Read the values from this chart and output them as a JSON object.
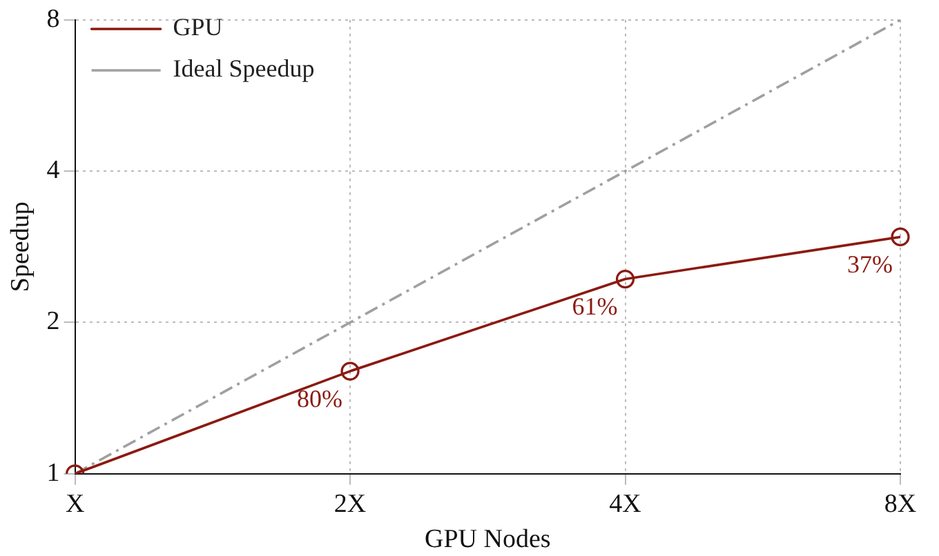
{
  "chart_data": {
    "type": "line",
    "xlabel": "GPU Nodes",
    "ylabel": "Speedup",
    "categories": [
      "X",
      "2X",
      "4X",
      "8X"
    ],
    "series": [
      {
        "name": "GPU",
        "color": "#8b1a10",
        "values": [
          1,
          1.6,
          2.44,
          2.96
        ],
        "marker": "circle",
        "line_style": "solid"
      },
      {
        "name": "Ideal Speedup",
        "color": "#a0a0a0",
        "values": [
          1,
          2,
          4,
          8
        ],
        "marker": "none",
        "line_style": "dashed"
      }
    ],
    "log": "y",
    "ylim": [
      1,
      8
    ],
    "yticks": [
      1,
      2,
      4,
      8
    ],
    "grid": true,
    "legend": "top left",
    "annotations": [
      {
        "text": "80%",
        "x": "2X",
        "y": 1.6
      },
      {
        "text": "61%",
        "x": "4X",
        "y": 2.44
      },
      {
        "text": "37%",
        "x": "8X",
        "y": 2.96
      }
    ]
  }
}
